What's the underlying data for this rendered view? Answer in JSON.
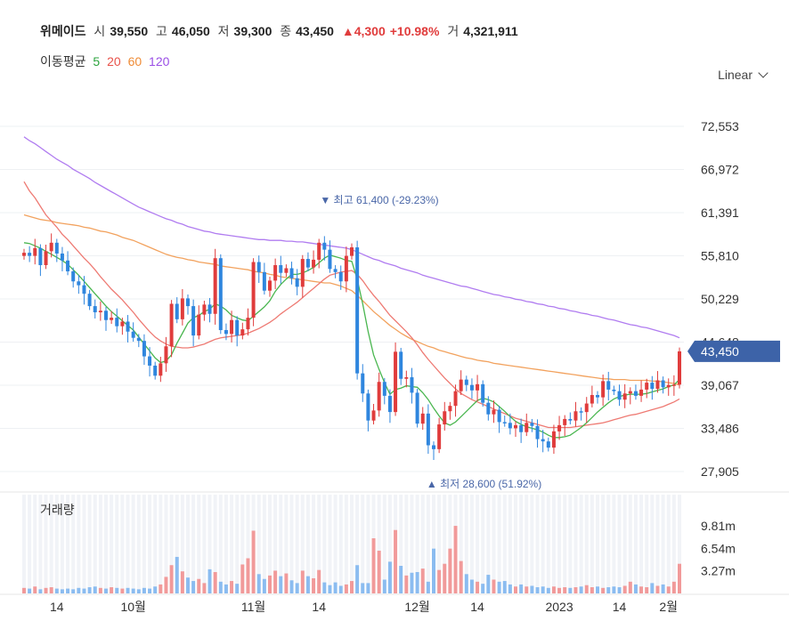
{
  "header": {
    "name": "위메이드",
    "open_label": "시",
    "open": "39,550",
    "high_label": "고",
    "high": "46,050",
    "low_label": "저",
    "low": "39,300",
    "close_label": "종",
    "close": "43,450",
    "change": "▲4,300",
    "change_pct": "+10.98%",
    "volume_label": "거",
    "volume": "4,321,911"
  },
  "ma_legend": {
    "label": "이동평균",
    "items": [
      {
        "label": "5",
        "color": "#2aa33c"
      },
      {
        "label": "20",
        "color": "#e8524a"
      },
      {
        "label": "60",
        "color": "#ef8b36"
      },
      {
        "label": "120",
        "color": "#9a4fe6"
      }
    ]
  },
  "scale_selector": {
    "value": "Linear"
  },
  "volume_panel": {
    "label": "거래량"
  },
  "chart_data": {
    "type": "candlestick",
    "price_ticks": [
      "72,553",
      "66,972",
      "61,391",
      "55,810",
      "50,229",
      "44,648",
      "39,067",
      "33,486",
      "27,905"
    ],
    "price_tick_values": [
      72553,
      66972,
      61391,
      55810,
      50229,
      44648,
      39067,
      33486,
      27905
    ],
    "volume_ticks": [
      "9.81m",
      "6.54m",
      "3.27m"
    ],
    "volume_tick_values": [
      9.81,
      6.54,
      3.27
    ],
    "x_tick_labels": [
      "14",
      "10월",
      "11월",
      "14",
      "12월",
      "14",
      "2023",
      "14",
      "2월"
    ],
    "current_price_label": "43,450",
    "current_price": 43450,
    "annotations": {
      "high": {
        "text": "최고 61,400 (-29.23%)",
        "value": 61400
      },
      "low": {
        "text": "최저 28,600 (51.92%)",
        "value": 28600
      }
    },
    "colors": {
      "up": "#e03c3c",
      "down": "#2f86de",
      "up_volume": "#f19a9a",
      "down_volume": "#8bbcf0",
      "price_tag": "#3d63a8"
    },
    "closes": [
      56200,
      55800,
      56800,
      54600,
      56400,
      57500,
      56100,
      55200,
      53800,
      52500,
      52000,
      50900,
      49300,
      48500,
      48700,
      47500,
      47800,
      46700,
      47300,
      46000,
      45200,
      44800,
      42800,
      41600,
      40300,
      41900,
      44100,
      49600,
      47600,
      50300,
      49300,
      45500,
      48200,
      49500,
      48300,
      55500,
      46200,
      45700,
      47500,
      45500,
      46300,
      47800,
      55000,
      53700,
      51300,
      52600,
      54600,
      53600,
      54200,
      52900,
      51800,
      55400,
      54300,
      55300,
      57500,
      56600,
      54100,
      53700,
      52500,
      55800,
      56900,
      40600,
      38000,
      34500,
      35800,
      39500,
      37700,
      35600,
      43400,
      39900,
      40100,
      38100,
      34100,
      35400,
      31300,
      30800,
      34000,
      35700,
      36400,
      38300,
      39800,
      39100,
      38400,
      39200,
      36800,
      35300,
      35900,
      34300,
      34200,
      33500,
      33900,
      33000,
      34200,
      33800,
      32100,
      31800,
      31000,
      33100,
      33900,
      34700,
      34500,
      35700,
      35600,
      36700,
      37800,
      37500,
      39600,
      38500,
      38300,
      37200,
      38000,
      38300,
      37700,
      38500,
      39400,
      38600,
      39700,
      38800,
      39100,
      39150,
      43450
    ],
    "ma5": [
      57500,
      57400,
      57100,
      56800,
      56400,
      56000,
      55600,
      55200,
      54700,
      54000,
      53300,
      52500,
      51700,
      50900,
      50100,
      49300,
      48600,
      48000,
      47400,
      46800,
      46200,
      45300,
      44400,
      43500,
      42600,
      42000,
      42200,
      43000,
      44500,
      45800,
      47100,
      47800,
      48100,
      48600,
      48900,
      49600,
      49300,
      48800,
      48100,
      47800,
      47500,
      47400,
      48000,
      48600,
      49200,
      50000,
      51200,
      52100,
      52800,
      53400,
      53400,
      53600,
      53900,
      54300,
      54900,
      55500,
      55900,
      55700,
      55500,
      55200,
      55100,
      52800,
      49600,
      46000,
      43000,
      41100,
      39400,
      37900,
      38500,
      38700,
      39000,
      38900,
      38800,
      38100,
      37200,
      36100,
      35100,
      34200,
      33900,
      34300,
      35000,
      35700,
      36400,
      37100,
      37400,
      37200,
      36900,
      36300,
      35700,
      35000,
      34400,
      34000,
      33700,
      33500,
      33300,
      33000,
      32600,
      32300,
      32300,
      32400,
      32600,
      33100,
      33600,
      34200,
      34900,
      35600,
      36200,
      36800,
      37300,
      37600,
      37800,
      37900,
      37900,
      37900,
      38000,
      38200,
      38400,
      38600,
      38900,
      39100,
      39800
    ],
    "ma20": [
      65400,
      64200,
      63300,
      62200,
      61100,
      60300,
      59500,
      58600,
      57900,
      57100,
      56300,
      55500,
      54800,
      54000,
      53100,
      52300,
      51500,
      50800,
      50100,
      49300,
      48500,
      47600,
      46800,
      46000,
      45300,
      44800,
      44400,
      44100,
      44000,
      43900,
      43900,
      44000,
      44200,
      44400,
      44700,
      45000,
      45200,
      45300,
      45400,
      45500,
      45600,
      45800,
      46100,
      46400,
      46800,
      47200,
      47700,
      48300,
      48800,
      49300,
      49800,
      50400,
      51000,
      51600,
      52200,
      52800,
      53300,
      53500,
      53700,
      53800,
      53900,
      53400,
      52600,
      51600,
      50700,
      49900,
      49000,
      48100,
      47400,
      46700,
      46000,
      45200,
      44300,
      43300,
      42400,
      41600,
      40800,
      40000,
      39300,
      38600,
      38000,
      37600,
      37200,
      36900,
      36600,
      36300,
      36000,
      35700,
      35400,
      35100,
      34800,
      34600,
      34400,
      34200,
      34000,
      33800,
      33600,
      33600,
      33600,
      33600,
      33600,
      33700,
      33800,
      33900,
      34000,
      34100,
      34200,
      34400,
      34600,
      34800,
      35000,
      35200,
      35300,
      35500,
      35700,
      35900,
      36100,
      36300,
      36600,
      36900,
      37300
    ],
    "ma60": [
      61100,
      60900,
      60700,
      60500,
      60400,
      60300,
      60100,
      60000,
      59900,
      59800,
      59700,
      59500,
      59400,
      59200,
      59000,
      58900,
      58700,
      58500,
      58200,
      58000,
      57800,
      57500,
      57200,
      56900,
      56600,
      56300,
      56000,
      55800,
      55600,
      55500,
      55300,
      55200,
      55000,
      54900,
      54800,
      54700,
      54500,
      54400,
      54300,
      54200,
      54100,
      54000,
      53800,
      53700,
      53600,
      53400,
      53300,
      53100,
      53000,
      52900,
      52800,
      52700,
      52600,
      52500,
      52400,
      52300,
      52300,
      52100,
      51900,
      51600,
      51300,
      50700,
      50000,
      49300,
      48600,
      48000,
      47400,
      46800,
      46300,
      45800,
      45400,
      45000,
      44700,
      44400,
      44100,
      43900,
      43600,
      43400,
      43200,
      43000,
      42800,
      42600,
      42500,
      42300,
      42200,
      42100,
      41900,
      41800,
      41700,
      41600,
      41500,
      41400,
      41300,
      41200,
      41100,
      41000,
      40900,
      40800,
      40700,
      40600,
      40500,
      40400,
      40300,
      40200,
      40100,
      40000,
      39900,
      39900,
      39800,
      39800,
      39800,
      39700,
      39700,
      39700,
      39700,
      39600,
      39600,
      39500,
      39400,
      39300,
      39100
    ],
    "ma120": [
      71200,
      70700,
      70300,
      69800,
      69300,
      68800,
      68300,
      67900,
      67500,
      67000,
      66600,
      66200,
      65800,
      65300,
      64900,
      64500,
      64100,
      63700,
      63300,
      62900,
      62500,
      62100,
      61800,
      61500,
      61200,
      60900,
      60600,
      60400,
      60100,
      59900,
      59600,
      59400,
      59200,
      59000,
      58900,
      58700,
      58600,
      58500,
      58400,
      58300,
      58200,
      58100,
      58000,
      57900,
      57900,
      57800,
      57800,
      57800,
      57700,
      57700,
      57600,
      57600,
      57500,
      57400,
      57300,
      57200,
      57100,
      57000,
      56900,
      56800,
      56600,
      56300,
      56000,
      55700,
      55400,
      55200,
      54900,
      54700,
      54500,
      54200,
      54000,
      53800,
      53600,
      53300,
      53100,
      52900,
      52700,
      52500,
      52300,
      52100,
      51900,
      51800,
      51600,
      51400,
      51200,
      51000,
      50800,
      50700,
      50500,
      50400,
      50200,
      50100,
      49900,
      49800,
      49600,
      49500,
      49300,
      49200,
      49000,
      48900,
      48700,
      48600,
      48400,
      48300,
      48100,
      48000,
      47800,
      47600,
      47500,
      47300,
      47100,
      46900,
      46800,
      46600,
      46500,
      46300,
      46100,
      45900,
      45700,
      45500,
      45200
    ],
    "volume": [
      0.8,
      0.7,
      1.0,
      0.6,
      0.8,
      0.9,
      0.7,
      0.6,
      0.7,
      0.6,
      0.8,
      0.7,
      0.9,
      1.0,
      0.8,
      0.7,
      0.9,
      0.8,
      0.7,
      0.8,
      0.7,
      0.6,
      0.8,
      0.7,
      1.0,
      1.3,
      2.4,
      4.1,
      5.3,
      3.2,
      2.3,
      1.8,
      2.1,
      1.5,
      3.5,
      3.1,
      1.7,
      1.3,
      1.8,
      1.4,
      4.2,
      5.1,
      9.1,
      2.8,
      2.1,
      2.6,
      3.3,
      2.5,
      2.9,
      1.9,
      1.5,
      3.3,
      2.5,
      2.2,
      3.4,
      1.6,
      1.2,
      1.6,
      1.1,
      1.3,
      1.8,
      4.1,
      1.5,
      1.5,
      8.0,
      6.2,
      2.0,
      4.6,
      9.2,
      4.0,
      2.6,
      3.0,
      3.1,
      3.6,
      1.7,
      6.5,
      3.4,
      4.3,
      6.5,
      9.8,
      4.7,
      2.8,
      2.0,
      1.7,
      1.4,
      2.7,
      2.0,
      1.7,
      1.8,
      1.3,
      1.0,
      1.3,
      1.0,
      1.1,
      0.9,
      1.0,
      0.8,
      1.0,
      0.8,
      0.9,
      0.8,
      0.9,
      1.0,
      1.2,
      0.9,
      1.0,
      0.8,
      0.9,
      1.0,
      0.9,
      1.1,
      1.7,
      1.3,
      1.0,
      0.9,
      1.5,
      1.1,
      1.3,
      1.0,
      1.7,
      4.3
    ]
  }
}
